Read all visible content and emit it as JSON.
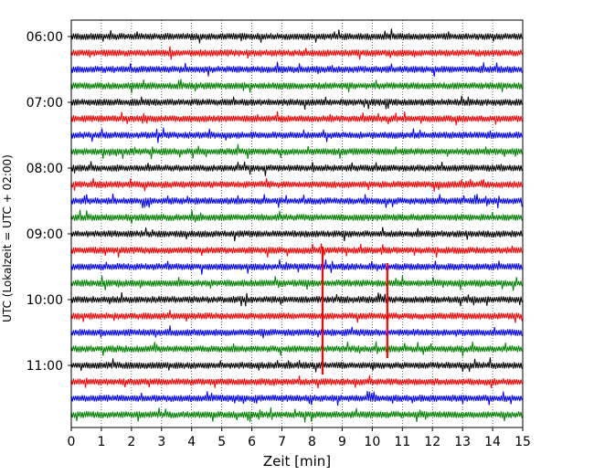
{
  "chart_data": {
    "type": "line",
    "title": "",
    "xlabel": "Zeit  [min]",
    "ylabel": "UTC (Lokalzeit = UTC + 02:00)",
    "xlim": [
      0,
      15
    ],
    "x_ticks": [
      "0",
      "1",
      "2",
      "3",
      "4",
      "5",
      "6",
      "7",
      "8",
      "9",
      "10",
      "11",
      "12",
      "13",
      "14",
      "15"
    ],
    "y_ticks": [
      "06:00",
      "07:00",
      "08:00",
      "09:00",
      "10:00",
      "11:00"
    ],
    "grid": "vertical dotted at each minute",
    "trace_interval_minutes": 15,
    "trace_colors": [
      "#000000",
      "#ff0000",
      "#0000ff",
      "#008000"
    ],
    "trace_start_times": [
      "06:00",
      "06:15",
      "06:30",
      "06:45",
      "07:00",
      "07:15",
      "07:30",
      "07:45",
      "08:00",
      "08:15",
      "08:30",
      "08:45",
      "09:00",
      "09:15",
      "09:30",
      "09:45",
      "10:00",
      "10:15",
      "10:30",
      "10:45",
      "11:00",
      "11:15",
      "11:30",
      "11:45"
    ],
    "events": [
      {
        "start_time": "09:15",
        "x": 8.35,
        "extends_to": "11:00"
      },
      {
        "start_time": "09:30",
        "x": 10.5,
        "extends_to": "10:45"
      }
    ]
  }
}
